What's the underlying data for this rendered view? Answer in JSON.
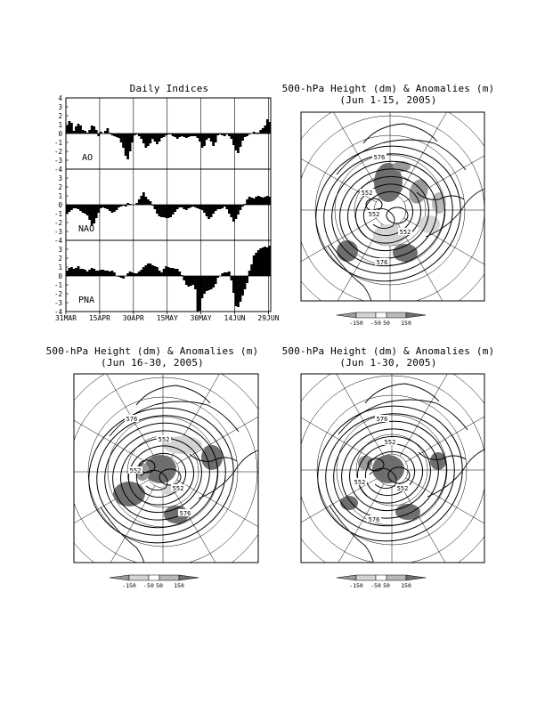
{
  "indices_panel": {
    "title": "Daily Indices",
    "ytick_labels": [
      "4",
      "3",
      "2",
      "1",
      "0",
      "-1",
      "-2",
      "-3",
      "-4"
    ],
    "xtick_labels": [
      "31MAR",
      "15APR",
      "30APR",
      "15MAY",
      "30MAY",
      "14JUN",
      "29JUN"
    ]
  },
  "maps": [
    {
      "title_line1": "500-hPa Height (dm) & Anomalies (m)",
      "title_line2": "(Jun 1-15, 2005)",
      "contour_labels": [
        "576",
        "552",
        "552",
        "552",
        "576"
      ]
    },
    {
      "title_line1": "500-hPa Height (dm) & Anomalies (m)",
      "title_line2": "(Jun 16-30, 2005)",
      "contour_labels": [
        "576",
        "552",
        "552",
        "552",
        "576"
      ]
    },
    {
      "title_line1": "500-hPa Height (dm) & Anomalies (m)",
      "title_line2": "(Jun 1-30, 2005)",
      "contour_labels": [
        "576",
        "552",
        "552",
        "552",
        "576"
      ]
    }
  ],
  "colorbar": {
    "labels": [
      "-150",
      "-50",
      "50",
      "150"
    ],
    "colors": [
      "#9a9a9a",
      "#d4d4d4",
      "#ffffff",
      "#b9b9b9",
      "#6e6e6e"
    ]
  },
  "chart_data": [
    {
      "type": "bar",
      "name": "AO",
      "x_range": [
        "31MAR",
        "29JUN"
      ],
      "ylim": [
        -4,
        4
      ],
      "values": [
        0.9,
        1.4,
        1.2,
        0.3,
        0.8,
        1.1,
        0.9,
        0.4,
        0.3,
        0.1,
        0.4,
        0.9,
        0.8,
        0.4,
        -0.3,
        0.2,
        0.0,
        0.3,
        0.6,
        0.1,
        -0.2,
        -0.3,
        -0.4,
        -0.5,
        -1.0,
        -1.6,
        -2.5,
        -2.9,
        -2.0,
        -1.0,
        -0.2,
        -0.1,
        -0.3,
        -0.6,
        -1.1,
        -1.6,
        -1.4,
        -1.1,
        -0.6,
        -0.9,
        -1.2,
        -0.9,
        -0.5,
        -0.4,
        -0.2,
        -0.1,
        -0.1,
        -0.3,
        -0.4,
        -0.6,
        -0.4,
        -0.3,
        -0.4,
        -0.5,
        -0.4,
        -0.3,
        -0.3,
        -0.3,
        -0.5,
        -0.9,
        -1.6,
        -1.4,
        -0.7,
        -0.5,
        -0.9,
        -1.4,
        -1.0,
        -0.2,
        -0.1,
        -0.2,
        -0.3,
        -0.1,
        -0.3,
        -0.6,
        -1.3,
        -1.9,
        -2.2,
        -1.5,
        -0.8,
        -0.4,
        -0.3,
        -0.1,
        0.0,
        0.2,
        0.1,
        0.1,
        0.4,
        0.6,
        0.9,
        1.6,
        1.3
      ]
    },
    {
      "type": "bar",
      "name": "NAO",
      "x_range": [
        "31MAR",
        "29JUN"
      ],
      "ylim": [
        -4,
        4
      ],
      "values": [
        -1.0,
        -0.8,
        -0.6,
        -0.4,
        -0.4,
        -0.5,
        -0.7,
        -0.9,
        -1.0,
        -1.2,
        -1.7,
        -2.4,
        -2.1,
        -1.5,
        -0.9,
        -0.4,
        -0.3,
        -0.4,
        -0.5,
        -0.7,
        -0.9,
        -0.8,
        -0.6,
        -0.3,
        -0.2,
        -0.1,
        -0.2,
        0.2,
        0.1,
        0.0,
        0.0,
        0.2,
        0.6,
        1.0,
        1.4,
        0.9,
        0.6,
        0.4,
        -0.1,
        -0.5,
        -1.0,
        -1.3,
        -1.4,
        -1.4,
        -1.5,
        -1.5,
        -1.4,
        -1.1,
        -0.8,
        -0.5,
        -0.3,
        -0.3,
        -0.5,
        -0.6,
        -0.4,
        -0.3,
        -0.2,
        -0.3,
        -0.4,
        -0.5,
        -0.6,
        -0.9,
        -1.3,
        -1.6,
        -1.4,
        -1.0,
        -0.7,
        -0.5,
        -0.5,
        -0.4,
        -0.2,
        -0.5,
        -1.0,
        -1.4,
        -1.9,
        -1.6,
        -1.1,
        -0.6,
        -0.2,
        0.1,
        0.6,
        0.9,
        0.8,
        0.7,
        0.9,
        1.0,
        0.9,
        0.8,
        0.9,
        1.0,
        0.9
      ]
    },
    {
      "type": "bar",
      "name": "PNA",
      "x_range": [
        "31MAR",
        "29JUN"
      ],
      "ylim": [
        -4,
        4
      ],
      "values": [
        0.6,
        0.9,
        1.0,
        0.8,
        0.9,
        1.1,
        0.8,
        0.8,
        0.7,
        0.5,
        0.7,
        0.9,
        0.8,
        0.6,
        0.6,
        0.7,
        0.7,
        0.6,
        0.6,
        0.5,
        0.6,
        0.4,
        0.0,
        -0.1,
        -0.2,
        -0.3,
        0.0,
        0.3,
        0.5,
        0.4,
        0.3,
        0.3,
        0.5,
        0.7,
        1.0,
        1.2,
        1.4,
        1.4,
        1.2,
        1.1,
        1.0,
        0.6,
        0.4,
        0.8,
        1.1,
        1.0,
        0.9,
        0.9,
        0.8,
        0.8,
        0.5,
        0.1,
        -0.5,
        -1.0,
        -1.2,
        -1.1,
        -1.0,
        -1.5,
        -4.0,
        -3.9,
        -2.5,
        -2.0,
        -1.7,
        -1.6,
        -1.5,
        -1.3,
        -0.9,
        -0.2,
        0.0,
        0.3,
        0.4,
        0.4,
        0.5,
        -0.5,
        -1.9,
        -3.4,
        -3.5,
        -2.9,
        -2.2,
        -1.5,
        -0.8,
        0.6,
        1.3,
        2.3,
        2.6,
        2.9,
        3.1,
        3.2,
        3.3,
        3.2,
        3.4
      ]
    }
  ]
}
